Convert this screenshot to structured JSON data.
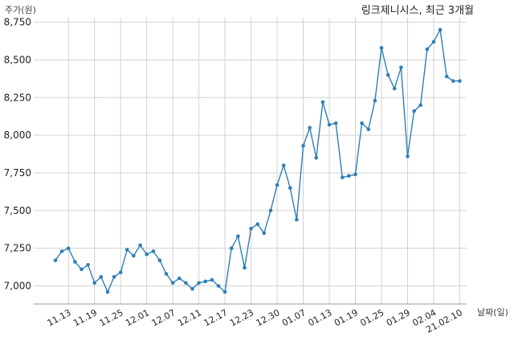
{
  "chart_data": {
    "type": "line",
    "title": "링크제니시스, 최근 3개월",
    "ylabel": "주가(원)",
    "xlabel": "날짜(일)",
    "ylim": [
      6880,
      8780
    ],
    "yticks": [
      7000,
      7250,
      7500,
      7750,
      8000,
      8250,
      8500,
      8750
    ],
    "ytick_labels": [
      "7,000",
      "7,250",
      "7,500",
      "7,750",
      "8,000",
      "8,250",
      "8,500",
      "8,750"
    ],
    "xtick_labels": [
      {
        "index": 2,
        "label": "11.13"
      },
      {
        "index": 6,
        "label": "11.19"
      },
      {
        "index": 10,
        "label": "11.25"
      },
      {
        "index": 14,
        "label": "12.01"
      },
      {
        "index": 18,
        "label": "12.07"
      },
      {
        "index": 22,
        "label": "12.11"
      },
      {
        "index": 26,
        "label": "12.17"
      },
      {
        "index": 30,
        "label": "12.23"
      },
      {
        "index": 34,
        "label": "12.30"
      },
      {
        "index": 38,
        "label": "01.07"
      },
      {
        "index": 42,
        "label": "01.13"
      },
      {
        "index": 46,
        "label": "01.19"
      },
      {
        "index": 50,
        "label": "01.25"
      },
      {
        "index": 54,
        "label": "01.29"
      },
      {
        "index": 58,
        "label": "02.04"
      },
      {
        "index": 62,
        "label": "21.02.10"
      }
    ],
    "grid": true,
    "series": [
      {
        "color": "#2e7fb8",
        "values": [
          7170,
          7230,
          7250,
          7160,
          7110,
          7140,
          7020,
          7060,
          6960,
          7060,
          7090,
          7240,
          7200,
          7270,
          7210,
          7230,
          7170,
          7080,
          7020,
          7050,
          7020,
          6980,
          7020,
          7030,
          7040,
          7000,
          6960,
          7250,
          7330,
          7120,
          7380,
          7410,
          7350,
          7500,
          7670,
          7800,
          7650,
          7440,
          7930,
          8050,
          7850,
          8220,
          8070,
          8080,
          7720,
          7730,
          7740,
          8080,
          8040,
          8230,
          8580,
          8400,
          8310,
          8450,
          7860,
          8160,
          8200,
          8570,
          8620,
          8700,
          8390,
          8360,
          8360
        ]
      }
    ]
  }
}
